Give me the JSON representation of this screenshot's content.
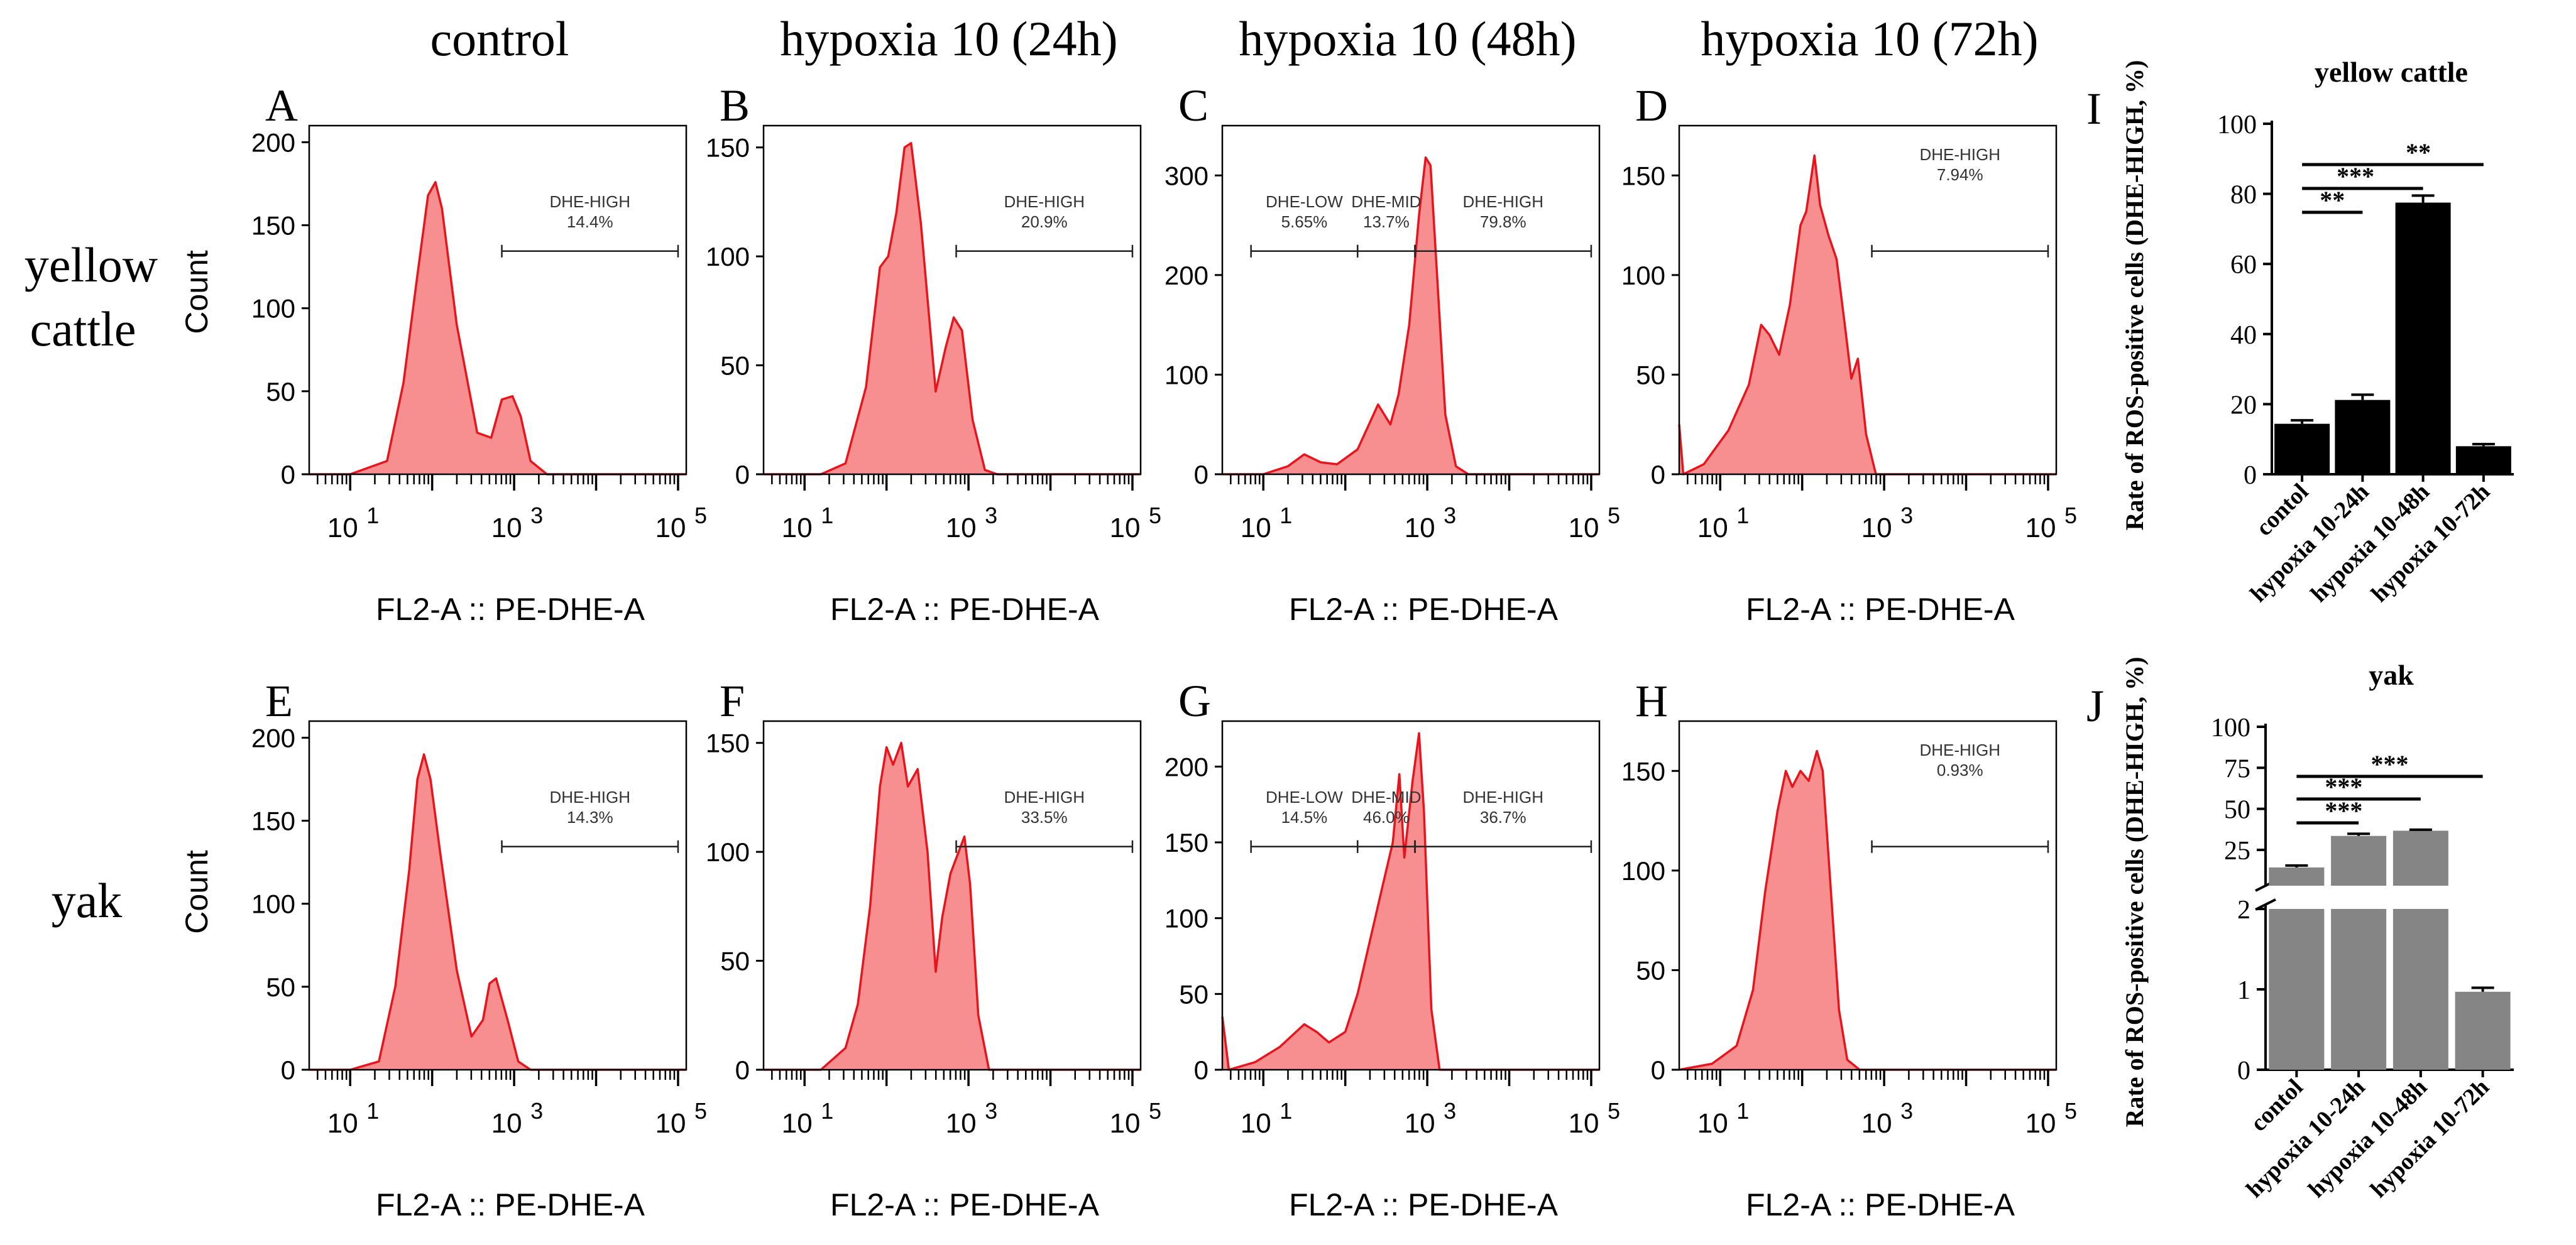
{
  "figure": {
    "column_headers": [
      "control",
      "hypoxia 10 (24h)",
      "hypoxia 10 (48h)",
      "hypoxia 10 (72h)"
    ],
    "row_labels": [
      [
        "yellow",
        "cattle"
      ],
      [
        "yak"
      ]
    ],
    "histogram_y_label": "Count",
    "histogram_x_label": "FL2-A :: PE-DHE-A",
    "histogram_x_ticks": [
      "10",
      "10",
      "10"
    ],
    "histogram_x_tick_exponents": [
      "1",
      "3",
      "5"
    ],
    "histogram_fill_color": "#f78f90",
    "histogram_line_color": "#e8141c",
    "bar_colors": {
      "yellow_cattle": "#000000",
      "yak": "#858585"
    }
  },
  "chart_data": [
    {
      "type": "area",
      "panel": "A",
      "species": "yellow cattle",
      "condition": "control",
      "x_log_range": [
        0.5,
        5.1
      ],
      "ylim": [
        0,
        210
      ],
      "yticks": [
        0,
        50,
        100,
        150,
        200
      ],
      "gates": [
        {
          "name": "DHE-HIGH",
          "percent": "14.4%",
          "x_log_range": [
            2.85,
            5.0
          ]
        }
      ],
      "peaks": [
        [
          0.5,
          0
        ],
        [
          1.0,
          0
        ],
        [
          1.45,
          8
        ],
        [
          1.65,
          55
        ],
        [
          1.82,
          120
        ],
        [
          1.95,
          168
        ],
        [
          2.04,
          176
        ],
        [
          2.12,
          160
        ],
        [
          2.3,
          90
        ],
        [
          2.55,
          25
        ],
        [
          2.72,
          22
        ],
        [
          2.85,
          45
        ],
        [
          2.98,
          47
        ],
        [
          3.08,
          35
        ],
        [
          3.2,
          8
        ],
        [
          3.4,
          0
        ],
        [
          5.1,
          0
        ]
      ]
    },
    {
      "type": "area",
      "panel": "B",
      "species": "yellow cattle",
      "condition": "hypoxia 10 (24h)",
      "x_log_range": [
        0.5,
        5.1
      ],
      "ylim": [
        0,
        160
      ],
      "yticks": [
        0,
        50,
        100,
        150
      ],
      "gates": [
        {
          "name": "DHE-HIGH",
          "percent": "20.9%",
          "x_log_range": [
            2.85,
            5.0
          ]
        }
      ],
      "peaks": [
        [
          0.5,
          0
        ],
        [
          1.2,
          0
        ],
        [
          1.5,
          5
        ],
        [
          1.75,
          40
        ],
        [
          1.92,
          95
        ],
        [
          2.02,
          100
        ],
        [
          2.12,
          120
        ],
        [
          2.22,
          150
        ],
        [
          2.3,
          152
        ],
        [
          2.42,
          115
        ],
        [
          2.6,
          38
        ],
        [
          2.72,
          58
        ],
        [
          2.82,
          72
        ],
        [
          2.92,
          66
        ],
        [
          3.05,
          25
        ],
        [
          3.2,
          2
        ],
        [
          3.35,
          0
        ],
        [
          5.1,
          0
        ]
      ]
    },
    {
      "type": "area",
      "panel": "C",
      "species": "yellow cattle",
      "condition": "hypoxia 10 (48h)",
      "x_log_range": [
        0.5,
        5.1
      ],
      "ylim": [
        0,
        350
      ],
      "yticks": [
        0,
        100,
        200,
        300
      ],
      "gates": [
        {
          "name": "DHE-LOW",
          "percent": "5.65%",
          "x_log_range": [
            0.85,
            2.15
          ]
        },
        {
          "name": "DHE-MID",
          "percent": "13.7%",
          "x_log_range": [
            2.15,
            2.85
          ]
        },
        {
          "name": "DHE-HIGH",
          "percent": "79.8%",
          "x_log_range": [
            2.85,
            5.0
          ]
        }
      ],
      "peaks": [
        [
          0.5,
          0
        ],
        [
          1.0,
          0
        ],
        [
          1.3,
          8
        ],
        [
          1.5,
          20
        ],
        [
          1.7,
          12
        ],
        [
          1.9,
          10
        ],
        [
          2.15,
          25
        ],
        [
          2.4,
          70
        ],
        [
          2.55,
          50
        ],
        [
          2.65,
          80
        ],
        [
          2.78,
          150
        ],
        [
          2.9,
          260
        ],
        [
          2.98,
          318
        ],
        [
          3.04,
          310
        ],
        [
          3.12,
          200
        ],
        [
          3.22,
          60
        ],
        [
          3.35,
          8
        ],
        [
          3.5,
          0
        ],
        [
          5.1,
          0
        ]
      ]
    },
    {
      "type": "area",
      "panel": "D",
      "species": "yellow cattle",
      "condition": "hypoxia 10 (72h)",
      "x_log_range": [
        0.5,
        5.1
      ],
      "ylim": [
        0,
        175
      ],
      "yticks": [
        0,
        50,
        100,
        150
      ],
      "gates": [
        {
          "name": "DHE-HIGH",
          "percent": "7.94%",
          "x_log_range": [
            2.85,
            5.0
          ]
        }
      ],
      "peaks": [
        [
          0.5,
          25
        ],
        [
          0.55,
          0
        ],
        [
          0.8,
          5
        ],
        [
          1.1,
          22
        ],
        [
          1.35,
          45
        ],
        [
          1.5,
          75
        ],
        [
          1.6,
          70
        ],
        [
          1.72,
          60
        ],
        [
          1.85,
          85
        ],
        [
          1.98,
          125
        ],
        [
          2.05,
          132
        ],
        [
          2.15,
          160
        ],
        [
          2.22,
          135
        ],
        [
          2.32,
          120
        ],
        [
          2.42,
          108
        ],
        [
          2.52,
          75
        ],
        [
          2.6,
          48
        ],
        [
          2.68,
          58
        ],
        [
          2.78,
          20
        ],
        [
          2.9,
          0
        ],
        [
          5.1,
          0
        ]
      ]
    },
    {
      "type": "area",
      "panel": "E",
      "species": "yak",
      "condition": "control",
      "x_log_range": [
        0.5,
        5.1
      ],
      "ylim": [
        0,
        210
      ],
      "yticks": [
        0,
        50,
        100,
        150,
        200
      ],
      "gates": [
        {
          "name": "DHE-HIGH",
          "percent": "14.3%",
          "x_log_range": [
            2.85,
            5.0
          ]
        }
      ],
      "peaks": [
        [
          0.5,
          0
        ],
        [
          1.0,
          0
        ],
        [
          1.35,
          5
        ],
        [
          1.55,
          50
        ],
        [
          1.72,
          120
        ],
        [
          1.82,
          175
        ],
        [
          1.9,
          190
        ],
        [
          1.98,
          175
        ],
        [
          2.1,
          130
        ],
        [
          2.3,
          60
        ],
        [
          2.48,
          20
        ],
        [
          2.62,
          30
        ],
        [
          2.7,
          52
        ],
        [
          2.78,
          55
        ],
        [
          2.92,
          30
        ],
        [
          3.05,
          5
        ],
        [
          3.2,
          0
        ],
        [
          5.1,
          0
        ]
      ]
    },
    {
      "type": "area",
      "panel": "F",
      "species": "yak",
      "condition": "hypoxia 10 (24h)",
      "x_log_range": [
        0.5,
        5.1
      ],
      "ylim": [
        0,
        160
      ],
      "yticks": [
        0,
        50,
        100,
        150
      ],
      "gates": [
        {
          "name": "DHE-HIGH",
          "percent": "33.5%",
          "x_log_range": [
            2.85,
            5.0
          ]
        }
      ],
      "peaks": [
        [
          0.5,
          0
        ],
        [
          1.2,
          0
        ],
        [
          1.5,
          10
        ],
        [
          1.65,
          30
        ],
        [
          1.8,
          75
        ],
        [
          1.92,
          130
        ],
        [
          2.0,
          148
        ],
        [
          2.08,
          140
        ],
        [
          2.18,
          150
        ],
        [
          2.26,
          130
        ],
        [
          2.38,
          138
        ],
        [
          2.5,
          100
        ],
        [
          2.6,
          45
        ],
        [
          2.68,
          70
        ],
        [
          2.78,
          90
        ],
        [
          2.88,
          100
        ],
        [
          2.95,
          107
        ],
        [
          3.02,
          85
        ],
        [
          3.12,
          25
        ],
        [
          3.25,
          0
        ],
        [
          5.1,
          0
        ]
      ]
    },
    {
      "type": "area",
      "panel": "G",
      "species": "yak",
      "condition": "hypoxia 10 (48h)",
      "x_log_range": [
        0.5,
        5.1
      ],
      "ylim": [
        0,
        230
      ],
      "yticks": [
        0,
        50,
        100,
        150,
        200
      ],
      "gates": [
        {
          "name": "DHE-LOW",
          "percent": "14.5%",
          "x_log_range": [
            0.85,
            2.15
          ]
        },
        {
          "name": "DHE-MID",
          "percent": "46.0%",
          "x_log_range": [
            2.15,
            2.85
          ]
        },
        {
          "name": "DHE-HIGH",
          "percent": "36.7%",
          "x_log_range": [
            2.85,
            5.0
          ]
        }
      ],
      "peaks": [
        [
          0.5,
          35
        ],
        [
          0.58,
          0
        ],
        [
          0.9,
          5
        ],
        [
          1.2,
          15
        ],
        [
          1.5,
          30
        ],
        [
          1.65,
          25
        ],
        [
          1.8,
          18
        ],
        [
          2.0,
          25
        ],
        [
          2.15,
          50
        ],
        [
          2.3,
          85
        ],
        [
          2.45,
          120
        ],
        [
          2.58,
          150
        ],
        [
          2.66,
          195
        ],
        [
          2.72,
          140
        ],
        [
          2.82,
          190
        ],
        [
          2.9,
          222
        ],
        [
          2.96,
          170
        ],
        [
          3.05,
          40
        ],
        [
          3.15,
          0
        ],
        [
          5.1,
          0
        ]
      ]
    },
    {
      "type": "area",
      "panel": "H",
      "species": "yak",
      "condition": "hypoxia 10 (72h)",
      "x_log_range": [
        0.5,
        5.1
      ],
      "ylim": [
        0,
        175
      ],
      "yticks": [
        0,
        50,
        100,
        150
      ],
      "gates": [
        {
          "name": "DHE-HIGH",
          "percent": "0.93%",
          "x_log_range": [
            2.85,
            5.0
          ]
        }
      ],
      "peaks": [
        [
          0.5,
          0
        ],
        [
          0.9,
          3
        ],
        [
          1.2,
          12
        ],
        [
          1.4,
          40
        ],
        [
          1.55,
          90
        ],
        [
          1.7,
          130
        ],
        [
          1.8,
          150
        ],
        [
          1.88,
          142
        ],
        [
          1.98,
          150
        ],
        [
          2.08,
          145
        ],
        [
          2.18,
          160
        ],
        [
          2.25,
          150
        ],
        [
          2.35,
          90
        ],
        [
          2.45,
          30
        ],
        [
          2.55,
          5
        ],
        [
          2.7,
          0
        ],
        [
          5.1,
          0
        ]
      ]
    },
    {
      "type": "bar",
      "panel": "I",
      "title": "yellow cattle",
      "ylabel": "Rate of ROS-positive cells (DHE-HIGH, %)",
      "categories": [
        "contol",
        "hypoxia 10-24h",
        "hypoxia 10-48h",
        "hypoxia 10-72h"
      ],
      "values": [
        14.4,
        21.2,
        77.5,
        8.0
      ],
      "errors": [
        1.0,
        1.5,
        2.0,
        0.6
      ],
      "ylim": [
        0,
        100
      ],
      "yticks": [
        0,
        20,
        40,
        60,
        80,
        100
      ],
      "significance": [
        {
          "from": 0,
          "to": 1,
          "label": "**"
        },
        {
          "from": 0,
          "to": 2,
          "label": "***"
        },
        {
          "from": 0,
          "to": 3,
          "label": "**"
        }
      ]
    },
    {
      "type": "bar",
      "panel": "J",
      "title": "yak",
      "ylabel": "Rate of ROS-positive cells (DHE-HIGH, %)",
      "categories": [
        "contol",
        "hypoxia 10-24h",
        "hypoxia 10-48h",
        "hypoxia 10-72h"
      ],
      "values": [
        14.3,
        33.5,
        36.7,
        0.97
      ],
      "errors": [
        1.2,
        1.3,
        0.6,
        0.05
      ],
      "broken_axis": {
        "lower": [
          0,
          2
        ],
        "upper": [
          2,
          100
        ]
      },
      "yticks_lower": [
        0,
        1,
        2
      ],
      "yticks_upper": [
        25,
        50,
        75,
        100
      ],
      "significance": [
        {
          "from": 0,
          "to": 1,
          "label": "***"
        },
        {
          "from": 0,
          "to": 2,
          "label": "***"
        },
        {
          "from": 0,
          "to": 3,
          "label": "***"
        }
      ]
    }
  ]
}
